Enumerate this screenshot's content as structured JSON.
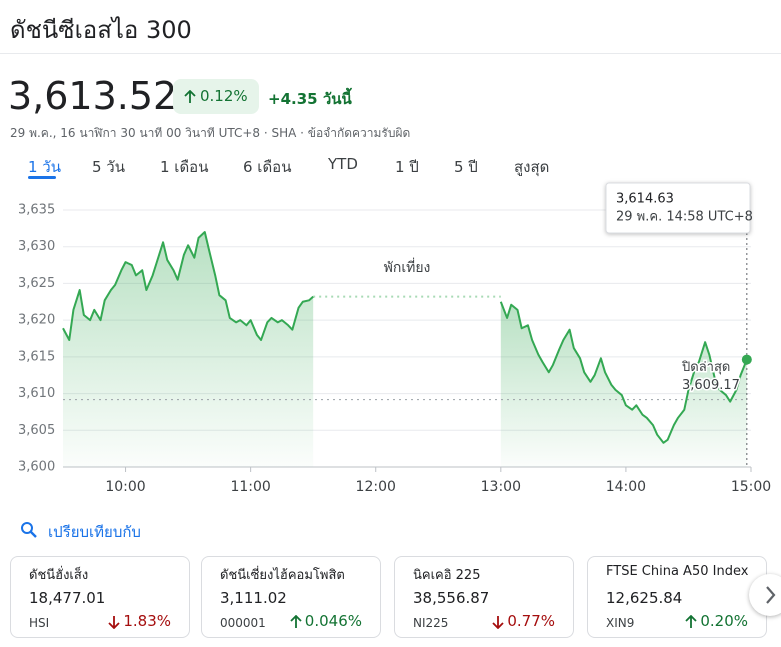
{
  "header": {
    "title": "ดัชนีซีเอสไอ 300"
  },
  "quote": {
    "price": "3,613.52",
    "change_percent": "0.12%",
    "change": "+4.35",
    "period": "วันนี้",
    "meta": "29 พ.ค., 16 นาฬิกา 30 นาที 00 วินาที UTC+8 · SHA · ข้อจำกัดความรับผิด"
  },
  "tabs": [
    "1 วัน",
    "5 วัน",
    "1 เดือน",
    "6 เดือน",
    "YTD",
    "1 ปี",
    "5 ปี",
    "สูงสุด"
  ],
  "chart_data": {
    "type": "line",
    "color": "#34a853",
    "x": [
      "09:30",
      "09:33",
      "09:35",
      "09:38",
      "09:40",
      "09:43",
      "09:45",
      "09:48",
      "09:50",
      "09:53",
      "09:55",
      "09:58",
      "10:00",
      "10:03",
      "10:05",
      "10:08",
      "10:10",
      "10:13",
      "10:15",
      "10:18",
      "10:20",
      "10:23",
      "10:25",
      "10:28",
      "10:30",
      "10:33",
      "10:35",
      "10:38",
      "10:40",
      "10:43",
      "10:45",
      "10:48",
      "10:50",
      "10:53",
      "10:55",
      "10:58",
      "11:00",
      "11:03",
      "11:05",
      "11:08",
      "11:10",
      "11:13",
      "11:15",
      "11:18",
      "11:20",
      "11:23",
      "11:25",
      "11:28",
      "11:30",
      "12:00",
      "13:00",
      "13:03",
      "13:05",
      "13:08",
      "13:10",
      "13:13",
      "13:15",
      "13:18",
      "13:20",
      "13:23",
      "13:25",
      "13:28",
      "13:30",
      "13:33",
      "13:35",
      "13:38",
      "13:40",
      "13:43",
      "13:45",
      "13:48",
      "13:50",
      "13:53",
      "13:55",
      "13:58",
      "14:00",
      "14:03",
      "14:05",
      "14:08",
      "14:10",
      "14:13",
      "14:15",
      "14:18",
      "14:20",
      "14:23",
      "14:25",
      "14:28",
      "14:30",
      "14:33",
      "14:35",
      "14:38",
      "14:40",
      "14:43",
      "14:45",
      "14:48",
      "14:50",
      "14:53",
      "14:55",
      "14:58"
    ],
    "values": [
      3618.9,
      3617.3,
      3621.4,
      3624.1,
      3620.7,
      3620.0,
      3621.4,
      3620.0,
      3622.7,
      3624.1,
      3624.8,
      3626.8,
      3627.9,
      3627.5,
      3626.1,
      3626.8,
      3624.1,
      3626.1,
      3627.9,
      3630.6,
      3628.2,
      3626.8,
      3625.5,
      3628.9,
      3630.2,
      3628.5,
      3631.2,
      3632.0,
      3629.6,
      3626.1,
      3623.4,
      3622.7,
      3620.3,
      3619.7,
      3620.0,
      3619.3,
      3620.0,
      3618.0,
      3617.3,
      3619.7,
      3620.3,
      3619.7,
      3620.0,
      3619.3,
      3618.7,
      3621.7,
      3622.5,
      3622.7,
      3623.2,
      null,
      3622.5,
      3620.3,
      3622.1,
      3621.4,
      3618.9,
      3619.3,
      3617.3,
      3615.3,
      3614.3,
      3612.9,
      3613.9,
      3616.0,
      3617.3,
      3618.7,
      3616.2,
      3614.8,
      3612.9,
      3611.6,
      3612.5,
      3614.8,
      3612.9,
      3611.2,
      3610.5,
      3609.8,
      3608.4,
      3607.8,
      3608.4,
      3607.1,
      3606.7,
      3605.7,
      3604.4,
      3603.3,
      3603.7,
      3605.7,
      3606.7,
      3607.8,
      3610.5,
      3613.2,
      3614.3,
      3617.0,
      3615.3,
      3611.6,
      3610.5,
      3609.8,
      3608.9,
      3610.5,
      3612.5,
      3614.63
    ],
    "xlim": [
      "09:30",
      "15:00"
    ],
    "xticks": [
      "10:00",
      "11:00",
      "12:00",
      "13:00",
      "14:00",
      "15:00"
    ],
    "ylim": [
      3600,
      3635
    ],
    "yticks": [
      {
        "value": 3600,
        "label": "3,600"
      },
      {
        "value": 3605,
        "label": "3,605"
      },
      {
        "value": 3610,
        "label": "3,610"
      },
      {
        "value": 3615,
        "label": "3,615"
      },
      {
        "value": 3620,
        "label": "3,620"
      },
      {
        "value": 3625,
        "label": "3,625"
      },
      {
        "value": 3630,
        "label": "3,630"
      },
      {
        "value": 3635,
        "label": "3,635"
      }
    ],
    "grid": true,
    "previous_close": {
      "value": 3609.17,
      "label": "3,609.17",
      "title": "ปิดล่าสุด"
    },
    "annotation": "พักเที่ยง",
    "tooltip": {
      "value_label": "3,614.63",
      "time_label": "29 พ.ค. 14:58 UTC+8"
    }
  },
  "compare": {
    "label": "เปรียบเทียบกับ"
  },
  "cards": [
    {
      "name": "ดัชนีฮั่งเส็ง",
      "value": "18,477.01",
      "symbol": "HSI",
      "change": "1.83%",
      "trend": "down"
    },
    {
      "name": "ดัชนีเซี่ยงไฮ้คอมโพสิต",
      "value": "3,111.02",
      "symbol": "000001",
      "change": "0.046%",
      "trend": "up"
    },
    {
      "name": "นิคเคอิ 225",
      "value": "38,556.87",
      "symbol": "NI225",
      "change": "0.77%",
      "trend": "down"
    },
    {
      "name": "FTSE China A50 Index",
      "value": "12,625.84",
      "symbol": "XIN9",
      "change": "0.20%",
      "trend": "up"
    }
  ]
}
